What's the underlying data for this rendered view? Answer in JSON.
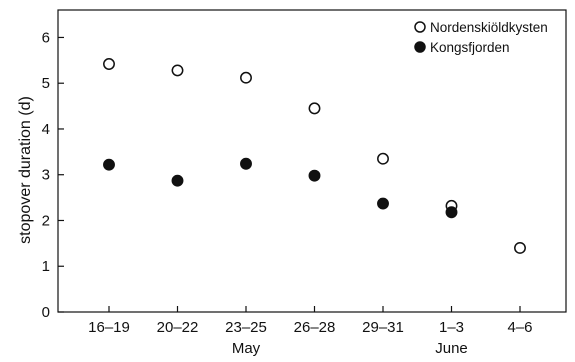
{
  "chart_data": {
    "type": "scatter",
    "title": "",
    "xlabel": "",
    "ylabel": "stopover duration (d)",
    "categories": [
      "16–19",
      "20–22",
      "23–25",
      "26–28",
      "29–31",
      "1–3",
      "4–6"
    ],
    "months": [
      {
        "label": "May",
        "category": "23–25"
      },
      {
        "label": "June",
        "category": "1–3"
      }
    ],
    "yticks": [
      "0",
      "1",
      "2",
      "3",
      "4",
      "5",
      "6"
    ],
    "ylim": [
      0,
      6.6
    ],
    "grid": false,
    "legend_position": "top-right",
    "series": [
      {
        "name": "Nordenskiöldkysten",
        "marker": "open-circle",
        "color": "#111111",
        "values": [
          5.42,
          5.28,
          5.12,
          4.45,
          3.35,
          2.32,
          1.4
        ]
      },
      {
        "name": "Kongsfjorden",
        "marker": "filled-circle",
        "color": "#111111",
        "values": [
          3.22,
          2.87,
          3.24,
          2.98,
          2.37,
          2.18,
          null
        ]
      }
    ]
  }
}
